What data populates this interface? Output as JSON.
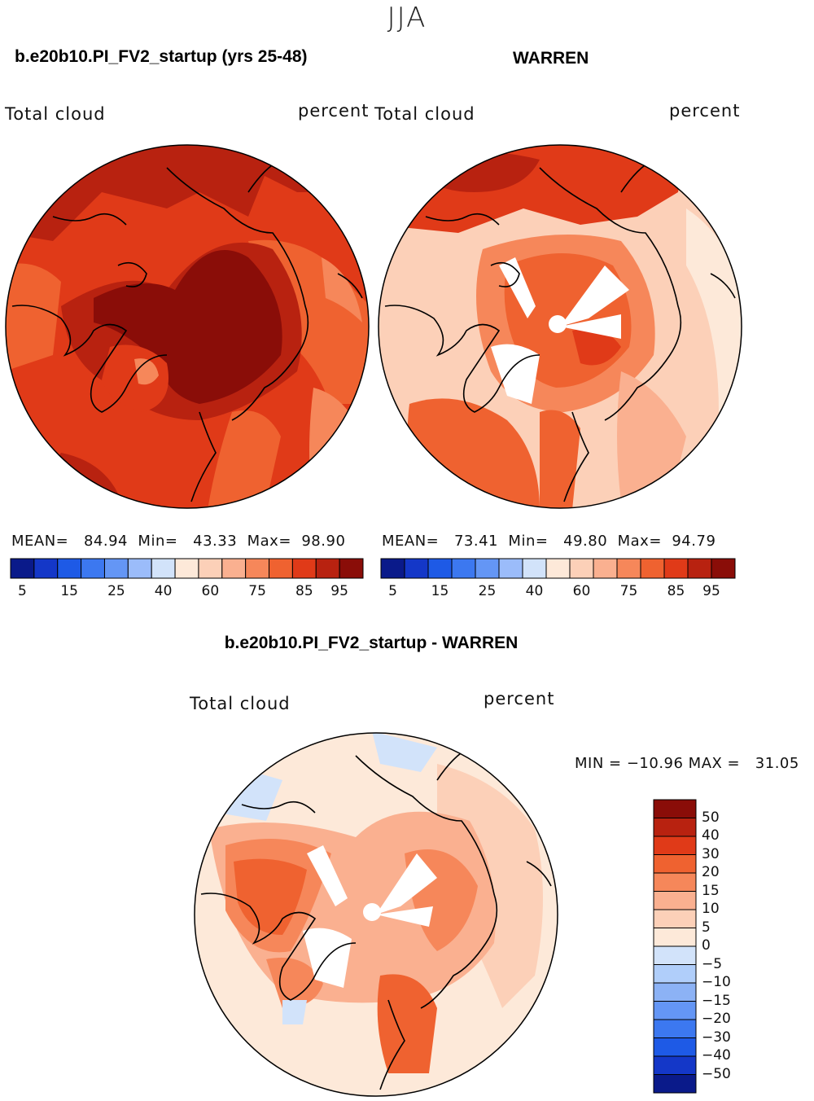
{
  "season": "JJA",
  "panels": [
    {
      "title": "b.e20b10.PI_FV2_startup (yrs 25-48)",
      "field": "Total cloud",
      "units": "percent",
      "stats": {
        "mean_label": "MEAN=",
        "mean": "84.94",
        "min_label": "Min=",
        "min": "43.33",
        "max_label": "Max=",
        "max": "98.90"
      }
    },
    {
      "title": "WARREN",
      "field": "Total cloud",
      "units": "percent",
      "stats": {
        "mean_label": "MEAN=",
        "mean": "73.41",
        "min_label": "Min=",
        "min": "49.80",
        "max_label": "Max=",
        "max": "94.79"
      }
    }
  ],
  "absolute_colorbar": {
    "colors": [
      "#0a1a8a",
      "#1437c8",
      "#1e5ae6",
      "#3c78f0",
      "#6496f5",
      "#9bbcfa",
      "#d2e3fa",
      "#fde9d9",
      "#fcd0b8",
      "#fab090",
      "#f6875a",
      "#ef6230",
      "#e03a18",
      "#b82210",
      "#8a0d08"
    ],
    "tick_labels": [
      "5",
      "15",
      "25",
      "40",
      "60",
      "75",
      "85",
      "95"
    ]
  },
  "difference_panel": {
    "title": "b.e20b10.PI_FV2_startup - WARREN",
    "field": "Total cloud",
    "units": "percent",
    "minmax": "MIN = −10.96 MAX =   31.05"
  },
  "difference_colorbar": {
    "colors": [
      "#8a0d08",
      "#b82210",
      "#e03a18",
      "#ef6230",
      "#f6875a",
      "#fab090",
      "#fcd0b8",
      "#fde9d9",
      "#d2e3fa",
      "#b0cefa",
      "#8cb2f5",
      "#6496f5",
      "#3c78f0",
      "#1e5ae6",
      "#1437c8",
      "#0a1a8a"
    ],
    "tick_labels": [
      "50",
      "40",
      "30",
      "20",
      "15",
      "10",
      "5",
      "0",
      "−5",
      "−10",
      "−15",
      "−20",
      "−30",
      "−40",
      "−50"
    ]
  },
  "map_colors": {
    "dark": "#8a0d08",
    "deep": "#b82210",
    "red": "#e03a18",
    "orange": "#ef6230",
    "salmon": "#f6875a",
    "peach": "#fab090",
    "light": "#fcd0b8",
    "cream": "#fde9d9",
    "paleblue": "#d2e3fa",
    "blue": "#b0cefa",
    "missing": "#ffffff"
  },
  "chart_data": {
    "type": "heatmap",
    "projection": "north-polar-stereographic",
    "variable": "Total cloud",
    "units": "percent",
    "season": "JJA",
    "maps": [
      {
        "name": "b.e20b10.PI_FV2_startup (yrs 25-48)",
        "mean": 84.94,
        "min": 43.33,
        "max": 98.9
      },
      {
        "name": "WARREN",
        "mean": 73.41,
        "min": 49.8,
        "max": 94.79
      },
      {
        "name": "b.e20b10.PI_FV2_startup - WARREN",
        "min": -10.96,
        "max": 31.05
      }
    ],
    "absolute_levels": [
      5,
      10,
      15,
      20,
      25,
      30,
      40,
      50,
      60,
      70,
      75,
      80,
      85,
      90,
      95
    ],
    "difference_levels": [
      50,
      40,
      30,
      20,
      15,
      10,
      5,
      0,
      -5,
      -10,
      -15,
      -20,
      -30,
      -40,
      -50
    ]
  }
}
